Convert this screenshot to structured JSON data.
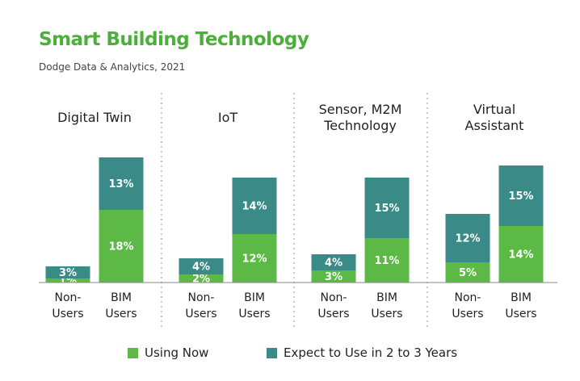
{
  "title": "Smart Building Technology",
  "subtitle": "Dodge Data & Analytics, 2021",
  "chart_data": [
    {
      "type": "bar",
      "stacked": true,
      "title": "Digital Twin",
      "categories": [
        "Non-Users",
        "BIM Users"
      ],
      "series": [
        {
          "name": "Using Now",
          "color": "#5cb946",
          "values": [
            1,
            18
          ],
          "value_labels": [
            "1%",
            "18%"
          ]
        },
        {
          "name": "Expect to Use in 2 to 3 Years",
          "color": "#3a8a87",
          "values": [
            3,
            13
          ],
          "value_labels": [
            "3%",
            "13%"
          ]
        }
      ]
    },
    {
      "type": "bar",
      "stacked": true,
      "title": "IoT",
      "categories": [
        "Non-Users",
        "BIM Users"
      ],
      "series": [
        {
          "name": "Using Now",
          "color": "#5cb946",
          "values": [
            2,
            12
          ],
          "value_labels": [
            "2%",
            "12%"
          ]
        },
        {
          "name": "Expect to Use in 2 to 3 Years",
          "color": "#3a8a87",
          "values": [
            4,
            14
          ],
          "value_labels": [
            "4%",
            "14%"
          ]
        }
      ]
    },
    {
      "type": "bar",
      "stacked": true,
      "title": "Sensor, M2M Technology",
      "categories": [
        "Non-Users",
        "BIM Users"
      ],
      "series": [
        {
          "name": "Using Now",
          "color": "#5cb946",
          "values": [
            3,
            11
          ],
          "value_labels": [
            "3%",
            "11%"
          ]
        },
        {
          "name": "Expect to Use in 2 to 3 Years",
          "color": "#3a8a87",
          "values": [
            4,
            15
          ],
          "value_labels": [
            "4%",
            "15%"
          ]
        }
      ]
    },
    {
      "type": "bar",
      "stacked": true,
      "title": "Virtual Assistant",
      "categories": [
        "Non-Users",
        "BIM Users"
      ],
      "series": [
        {
          "name": "Using Now",
          "color": "#5cb946",
          "values": [
            5,
            14
          ],
          "value_labels": [
            "5%",
            "14%"
          ]
        },
        {
          "name": "Expect to Use in 2 to 3 Years",
          "color": "#3a8a87",
          "values": [
            12,
            15
          ],
          "value_labels": [
            "12%",
            "15%"
          ]
        }
      ]
    }
  ]
}
